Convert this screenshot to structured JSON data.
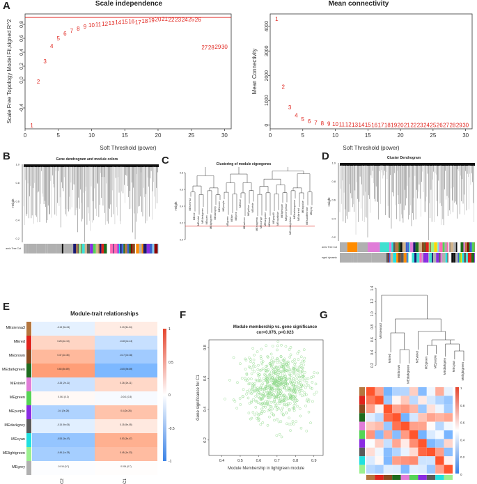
{
  "panels": {
    "A": "A",
    "B": "B",
    "C": "C",
    "D": "D",
    "E": "E",
    "F": "F",
    "G": "G"
  },
  "scale_independence": {
    "title": "Scale independence",
    "xlabel": "Soft Threshold (power)",
    "ylabel": "Scale Free Topology Model Fit,signed R^2",
    "x_ticks": [
      0,
      5,
      10,
      15,
      20,
      25,
      30
    ],
    "y_ticks": [
      "-0.4",
      "0.0",
      "0.2",
      "0.4",
      "0.6",
      "0.8"
    ],
    "cutoff_line": 0.9,
    "color": "#e0231c"
  },
  "mean_connectivity": {
    "title": "Mean connectivity",
    "xlabel": "Soft Threshold (power)",
    "ylabel": "Mean Connectivity",
    "x_ticks": [
      0,
      5,
      10,
      15,
      20,
      25,
      30
    ],
    "y_ticks": [
      "0",
      "1000",
      "2000",
      "3000",
      "4000"
    ]
  },
  "chart_data": [
    {
      "type": "scatter",
      "title": "Scale independence",
      "xlabel": "Soft Threshold (power)",
      "ylabel": "Scale Free Topology Model Fit,signed R^2",
      "x": [
        1,
        2,
        3,
        4,
        5,
        6,
        7,
        8,
        9,
        10,
        11,
        12,
        13,
        14,
        15,
        16,
        17,
        18,
        19,
        20,
        21,
        22,
        23,
        24,
        25,
        26,
        27,
        28,
        29,
        30
      ],
      "y": [
        -0.65,
        -0.02,
        0.27,
        0.49,
        0.6,
        0.67,
        0.71,
        0.74,
        0.77,
        0.79,
        0.8,
        0.81,
        0.82,
        0.83,
        0.84,
        0.845,
        0.83,
        0.85,
        0.86,
        0.875,
        0.88,
        0.87,
        0.87,
        0.87,
        0.875,
        0.87,
        0.47,
        0.47,
        0.48,
        0.48
      ],
      "xlim": [
        0,
        31
      ],
      "ylim": [
        -0.7,
        0.95
      ],
      "hline": 0.9
    },
    {
      "type": "scatter",
      "title": "Mean connectivity",
      "xlabel": "Soft Threshold (power)",
      "ylabel": "Mean Connectivity",
      "x": [
        1,
        2,
        3,
        4,
        5,
        6,
        7,
        8,
        9,
        10,
        11,
        12,
        13,
        14,
        15,
        16,
        17,
        18,
        19,
        20,
        21,
        22,
        23,
        24,
        25,
        26,
        27,
        28,
        29,
        30
      ],
      "y": [
        4300,
        1550,
        720,
        400,
        240,
        160,
        110,
        80,
        60,
        45,
        35,
        28,
        22,
        18,
        15,
        12,
        10,
        8,
        7,
        6,
        5,
        4,
        4,
        3,
        3,
        2,
        2,
        2,
        2,
        1
      ],
      "xlim": [
        0,
        31
      ],
      "ylim": [
        -150,
        4500
      ]
    },
    {
      "type": "heatmap",
      "title": "Module-trait relationships",
      "columns": [
        "C2",
        "C1"
      ],
      "rows": [
        "MEsienna3",
        "MEred",
        "MEbrown",
        "MEdarkgreen",
        "MEviolet",
        "MEgreen",
        "MEpurple",
        "MEdarkgrey",
        "MEcyan",
        "MElightgreen",
        "MEgrey"
      ],
      "values": [
        [
          -0.13,
          0.13
        ],
        [
          0.28,
          -0.28
        ],
        [
          0.47,
          -0.47
        ],
        [
          0.65,
          -0.65
        ],
        [
          -0.26,
          0.26
        ],
        [
          0.041,
          -0.041
        ],
        [
          -0.4,
          0.4
        ],
        [
          -0.15,
          0.15
        ],
        [
          -0.53,
          0.53
        ],
        [
          -0.45,
          0.45
        ],
        [
          -0.014,
          0.014
        ]
      ],
      "colorbar": [
        "1",
        "0.5",
        "0",
        "-0.5",
        "-1"
      ]
    },
    {
      "type": "scatter",
      "title": "Module membership vs. gene significance",
      "subtitle": "cor=0.076, p=0.023",
      "xlabel": "Module Membership in lightgreen module",
      "ylabel": "Gene significance for C1",
      "x_ticks": [
        "0.4",
        "0.5",
        "0.6",
        "0.7",
        "0.8",
        "0.9"
      ],
      "y_ticks": [
        "0.2",
        "0.4",
        "0.6",
        "0.8"
      ],
      "xlim": [
        0.33,
        0.95
      ],
      "ylim": [
        0.1,
        0.85
      ]
    }
  ],
  "panelA_points_labels": [
    "1",
    "2",
    "3",
    "4",
    "5",
    "6",
    "7",
    "8",
    "9",
    "10",
    "11",
    "12",
    "13",
    "14",
    "15",
    "16",
    "17",
    "18",
    "19",
    "20",
    "21",
    "22",
    "23",
    "24",
    "25",
    "26",
    "27",
    "28",
    "29",
    "30"
  ],
  "gene_dendro": {
    "title": "Gene dendrogram and module colors",
    "ylabel": "Height",
    "bar_label": "Dynamic Tree Cut",
    "y_ticks": [
      "1.0",
      "0.8",
      "0.6",
      "0.4",
      "0.2"
    ]
  },
  "eigengene_clust": {
    "title": "Clustering of module eigengenes",
    "ylabel": "Height",
    "leaves": [
      "MEsienna3",
      "MEred",
      "MEviolet",
      "MEdarkgreen",
      "MEcyan",
      "MElightgreen",
      "MEdarkgrey",
      "MEbrown",
      "MEpurple",
      "MEgreen",
      "MEtan",
      "MEpink",
      "MEblue",
      "MEsalmon",
      "MEyellow",
      "MEwhite",
      "MEmagenta",
      "MEorange",
      "MEturquoise",
      "MEblack",
      "MEgrey60",
      "MEroyalblue",
      "MElightcyan",
      "MEgreenyellow",
      "MEmidnightblue",
      "MEdarkturquoise",
      "MEdarkred",
      "MEskyblue",
      "MEsaddlebrown",
      "MEgrey"
    ]
  },
  "cluster_dendro": {
    "title": "Cluster Dendrogram",
    "ylabel": "Height",
    "bar1": "Dynamic Tree Cut",
    "bar2": "Merged dynamic",
    "y_ticks": [
      "1.0",
      "0.8",
      "0.6",
      "0.4",
      "0.2"
    ]
  },
  "heatmap_cells": [
    [
      "-0.13 (5e-04)",
      "0.13 (5e-04)"
    ],
    [
      "0.28 (1e-13)",
      "-0.28 (1e-13)"
    ],
    [
      "0.47 (1e-36)",
      "-0.47 (1e-36)"
    ],
    [
      "0.65 (5e-89)",
      "-0.65 (5e-89)"
    ],
    [
      "-0.26 (2e-11)",
      "0.26 (2e-11)"
    ],
    [
      "0.041 (0.3)",
      "-0.041 (0.3)"
    ],
    [
      "-0.4 (2e-26)",
      "0.4 (2e-26)"
    ],
    [
      "-0.15 (9e-05)",
      "0.15 (9e-05)"
    ],
    [
      "-0.53 (3e-47)",
      "0.53 (3e-47)"
    ],
    [
      "-0.45 (1e-33)",
      "0.45 (1e-33)"
    ],
    [
      "-0.014 (0.7)",
      "0.014 (0.7)"
    ]
  ],
  "g_dendro": {
    "y_ticks": [
      "1.4",
      "1.2",
      "1.0",
      "0.8",
      "0.6",
      "0.4",
      "0.2"
    ],
    "leaves": [
      "MEsienna3",
      "MEred",
      "MEbrown",
      "MEdarkgreen",
      "MEviolet",
      "MEgreen",
      "MEpurple",
      "MEdarkgrey",
      "MEcyan",
      "MElightgreen"
    ],
    "colorbar": [
      "1",
      "0.8",
      "0.6",
      "0.4",
      "0.2",
      "0"
    ]
  },
  "module_colors": {
    "MEsienna3": "#b5763e",
    "MEred": "#e0231c",
    "MEbrown": "#8b4a1f",
    "MEdarkgreen": "#1e6b1e",
    "MEviolet": "#e07cd8",
    "MEgreen": "#55d455",
    "MEpurple": "#8a2be2",
    "MEdarkgrey": "#5a5a5a",
    "MEcyan": "#20e0e0",
    "MElightgreen": "#9bf08f",
    "MEgrey": "#b0b0b0"
  }
}
